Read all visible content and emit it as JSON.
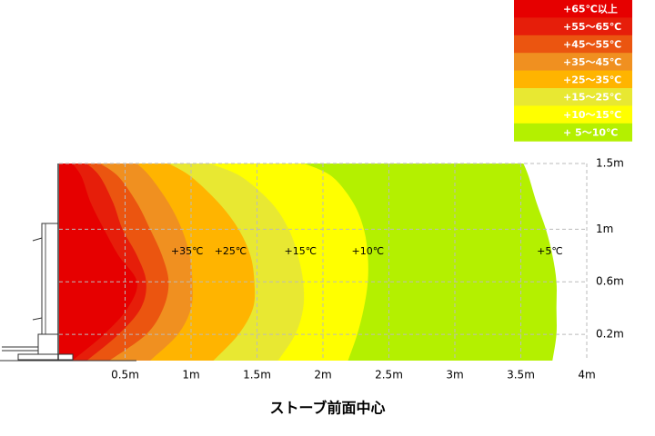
{
  "chart_data": {
    "type": "contour",
    "xlabel": "ストーブ前面中心",
    "xlim": [
      0,
      4
    ],
    "ylim": [
      0,
      1.5
    ],
    "xticks": [
      {
        "value": 0.5,
        "label": "0.5m"
      },
      {
        "value": 1,
        "label": "1m"
      },
      {
        "value": 1.5,
        "label": "1.5m"
      },
      {
        "value": 2,
        "label": "2m"
      },
      {
        "value": 2.5,
        "label": "2.5m"
      },
      {
        "value": 3,
        "label": "3m"
      },
      {
        "value": 3.5,
        "label": "3.5m"
      },
      {
        "value": 4,
        "label": "4m"
      }
    ],
    "yticks": [
      {
        "value": 0.2,
        "label": "0.2m"
      },
      {
        "value": 0.6,
        "label": "0.6m"
      },
      {
        "value": 1,
        "label": "1m"
      },
      {
        "value": 1.5,
        "label": "1.5m"
      }
    ],
    "grid": true,
    "heights": [
      0,
      0.2,
      0.4,
      0.6,
      0.8,
      1.0,
      1.2,
      1.4,
      1.5
    ],
    "bands": [
      {
        "name": "+65℃以上",
        "color": "#e60000",
        "extent": [
          0.1,
          0.34,
          0.52,
          0.59,
          0.45,
          0.34,
          0.24,
          0.17,
          0.1
        ]
      },
      {
        "name": "+55〜65℃",
        "color": "#e61e0a",
        "extent": [
          0.21,
          0.45,
          0.62,
          0.66,
          0.59,
          0.48,
          0.41,
          0.31,
          0.21
        ]
      },
      {
        "name": "+45〜55℃",
        "color": "#eb5510",
        "extent": [
          0.38,
          0.66,
          0.79,
          0.83,
          0.78,
          0.69,
          0.59,
          0.45,
          0.31
        ]
      },
      {
        "name": "+35〜45℃",
        "color": "#f09020",
        "extent": [
          0.69,
          0.9,
          1.0,
          1.01,
          0.99,
          0.93,
          0.83,
          0.69,
          0.59
        ]
      },
      {
        "name": "+25〜35℃",
        "color": "#ffb400",
        "extent": [
          1.17,
          1.36,
          1.47,
          1.48,
          1.45,
          1.36,
          1.21,
          1.0,
          0.83
        ]
      },
      {
        "name": "+15〜25℃",
        "color": "#e8e832",
        "extent": [
          1.66,
          1.79,
          1.85,
          1.85,
          1.81,
          1.74,
          1.61,
          1.38,
          1.14
        ]
      },
      {
        "name": "+10〜15℃",
        "color": "#ffff00",
        "extent": [
          2.19,
          2.26,
          2.31,
          2.34,
          2.34,
          2.31,
          2.23,
          2.07,
          1.86
        ]
      },
      {
        "name": "+ 5〜10℃",
        "color": "#b4f000",
        "extent": [
          3.74,
          3.77,
          3.77,
          3.77,
          3.74,
          3.69,
          3.62,
          3.56,
          3.52
        ]
      }
    ],
    "annotations": [
      {
        "text": "+35℃",
        "x": 0.97,
        "y": 0.83
      },
      {
        "text": "+25℃",
        "x": 1.3,
        "y": 0.83
      },
      {
        "text": "+15℃",
        "x": 1.83,
        "y": 0.83
      },
      {
        "text": "+10℃",
        "x": 2.34,
        "y": 0.83
      },
      {
        "text": "+5℃",
        "x": 3.72,
        "y": 0.83
      }
    ]
  }
}
